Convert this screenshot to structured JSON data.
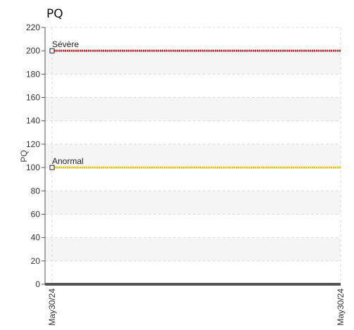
{
  "chart_data": {
    "type": "line",
    "title": "PQ",
    "ylabel": "PQ",
    "xlabel": "",
    "ylim": [
      0,
      220
    ],
    "yticks": [
      0,
      20,
      40,
      60,
      80,
      100,
      120,
      140,
      160,
      180,
      200,
      220
    ],
    "x_categories": [
      "May30/24",
      "May30/24"
    ],
    "series": [
      {
        "name": "Sévère",
        "color": "#e41a1c",
        "y": 200,
        "style": "dotted"
      },
      {
        "name": "Anormal",
        "color": "#f2c200",
        "y": 100,
        "style": "dotted"
      },
      {
        "color": "#555555",
        "y": 0,
        "style": "solid"
      }
    ],
    "grid": true,
    "band_color": "#f5f5f5"
  }
}
